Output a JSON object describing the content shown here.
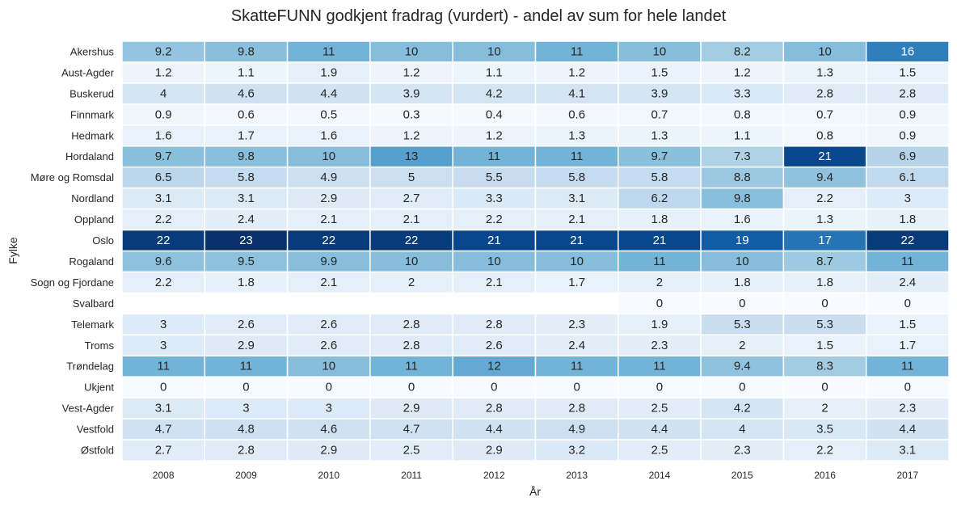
{
  "chart_data": {
    "type": "heatmap",
    "title": "SkatteFUNN godkjent fradrag (vurdert) - andel av sum for hele landet",
    "xlabel": "År",
    "ylabel": "Fylke",
    "x": [
      "2008",
      "2009",
      "2010",
      "2011",
      "2012",
      "2013",
      "2014",
      "2015",
      "2016",
      "2017"
    ],
    "y": [
      "Akershus",
      "Aust-Agder",
      "Buskerud",
      "Finnmark",
      "Hedmark",
      "Hordaland",
      "Møre og Romsdal",
      "Nordland",
      "Oppland",
      "Oslo",
      "Rogaland",
      "Sogn og Fjordane",
      "Svalbard",
      "Telemark",
      "Troms",
      "Trøndelag",
      "Ukjent",
      "Vest-Agder",
      "Vestfold",
      "Østfold"
    ],
    "values": [
      [
        9.2,
        9.8,
        11,
        10,
        10,
        11,
        10,
        8.2,
        10,
        16
      ],
      [
        1.2,
        1.1,
        1.9,
        1.2,
        1.1,
        1.2,
        1.5,
        1.2,
        1.3,
        1.5
      ],
      [
        4,
        4.6,
        4.4,
        3.9,
        4.2,
        4.1,
        3.9,
        3.3,
        2.8,
        2.8
      ],
      [
        0.9,
        0.6,
        0.5,
        0.3,
        0.4,
        0.6,
        0.7,
        0.8,
        0.7,
        0.9
      ],
      [
        1.6,
        1.7,
        1.6,
        1.2,
        1.2,
        1.3,
        1.3,
        1.1,
        0.8,
        0.9
      ],
      [
        9.7,
        9.8,
        10,
        13,
        11,
        11,
        9.7,
        7.3,
        21,
        6.9
      ],
      [
        6.5,
        5.8,
        4.9,
        5,
        5.5,
        5.8,
        5.8,
        8.8,
        9.4,
        6.1
      ],
      [
        3.1,
        3.1,
        2.9,
        2.7,
        3.3,
        3.1,
        6.2,
        9.8,
        2.2,
        3
      ],
      [
        2.2,
        2.4,
        2.1,
        2.1,
        2.2,
        2.1,
        1.8,
        1.6,
        1.3,
        1.8
      ],
      [
        22,
        23,
        22,
        22,
        21,
        21,
        21,
        19,
        17,
        22
      ],
      [
        9.6,
        9.5,
        9.9,
        10,
        10,
        10,
        11,
        10,
        8.7,
        11
      ],
      [
        2.2,
        1.8,
        2.1,
        2,
        2.1,
        1.7,
        2,
        1.8,
        1.8,
        2.4
      ],
      [
        null,
        null,
        null,
        null,
        null,
        null,
        0,
        0,
        0,
        0
      ],
      [
        3,
        2.6,
        2.6,
        2.8,
        2.8,
        2.3,
        1.9,
        5.3,
        5.3,
        1.5
      ],
      [
        3,
        2.9,
        2.6,
        2.8,
        2.6,
        2.4,
        2.3,
        2,
        1.5,
        1.7
      ],
      [
        11,
        11,
        10,
        11,
        12,
        11,
        11,
        9.4,
        8.3,
        11
      ],
      [
        0,
        0,
        0,
        0,
        0,
        0,
        0,
        0,
        0,
        0
      ],
      [
        3.1,
        3,
        3,
        2.9,
        2.8,
        2.8,
        2.5,
        4.2,
        2,
        2.3
      ],
      [
        4.7,
        4.8,
        4.6,
        4.7,
        4.4,
        4.9,
        4.4,
        4,
        3.5,
        4.4
      ],
      [
        2.7,
        2.8,
        2.9,
        2.5,
        2.9,
        3.2,
        2.5,
        2.3,
        2.2,
        3.1
      ]
    ],
    "vmin": 0,
    "vmax": 23,
    "colormap": "Blues",
    "colorbar": false,
    "grid": false
  }
}
